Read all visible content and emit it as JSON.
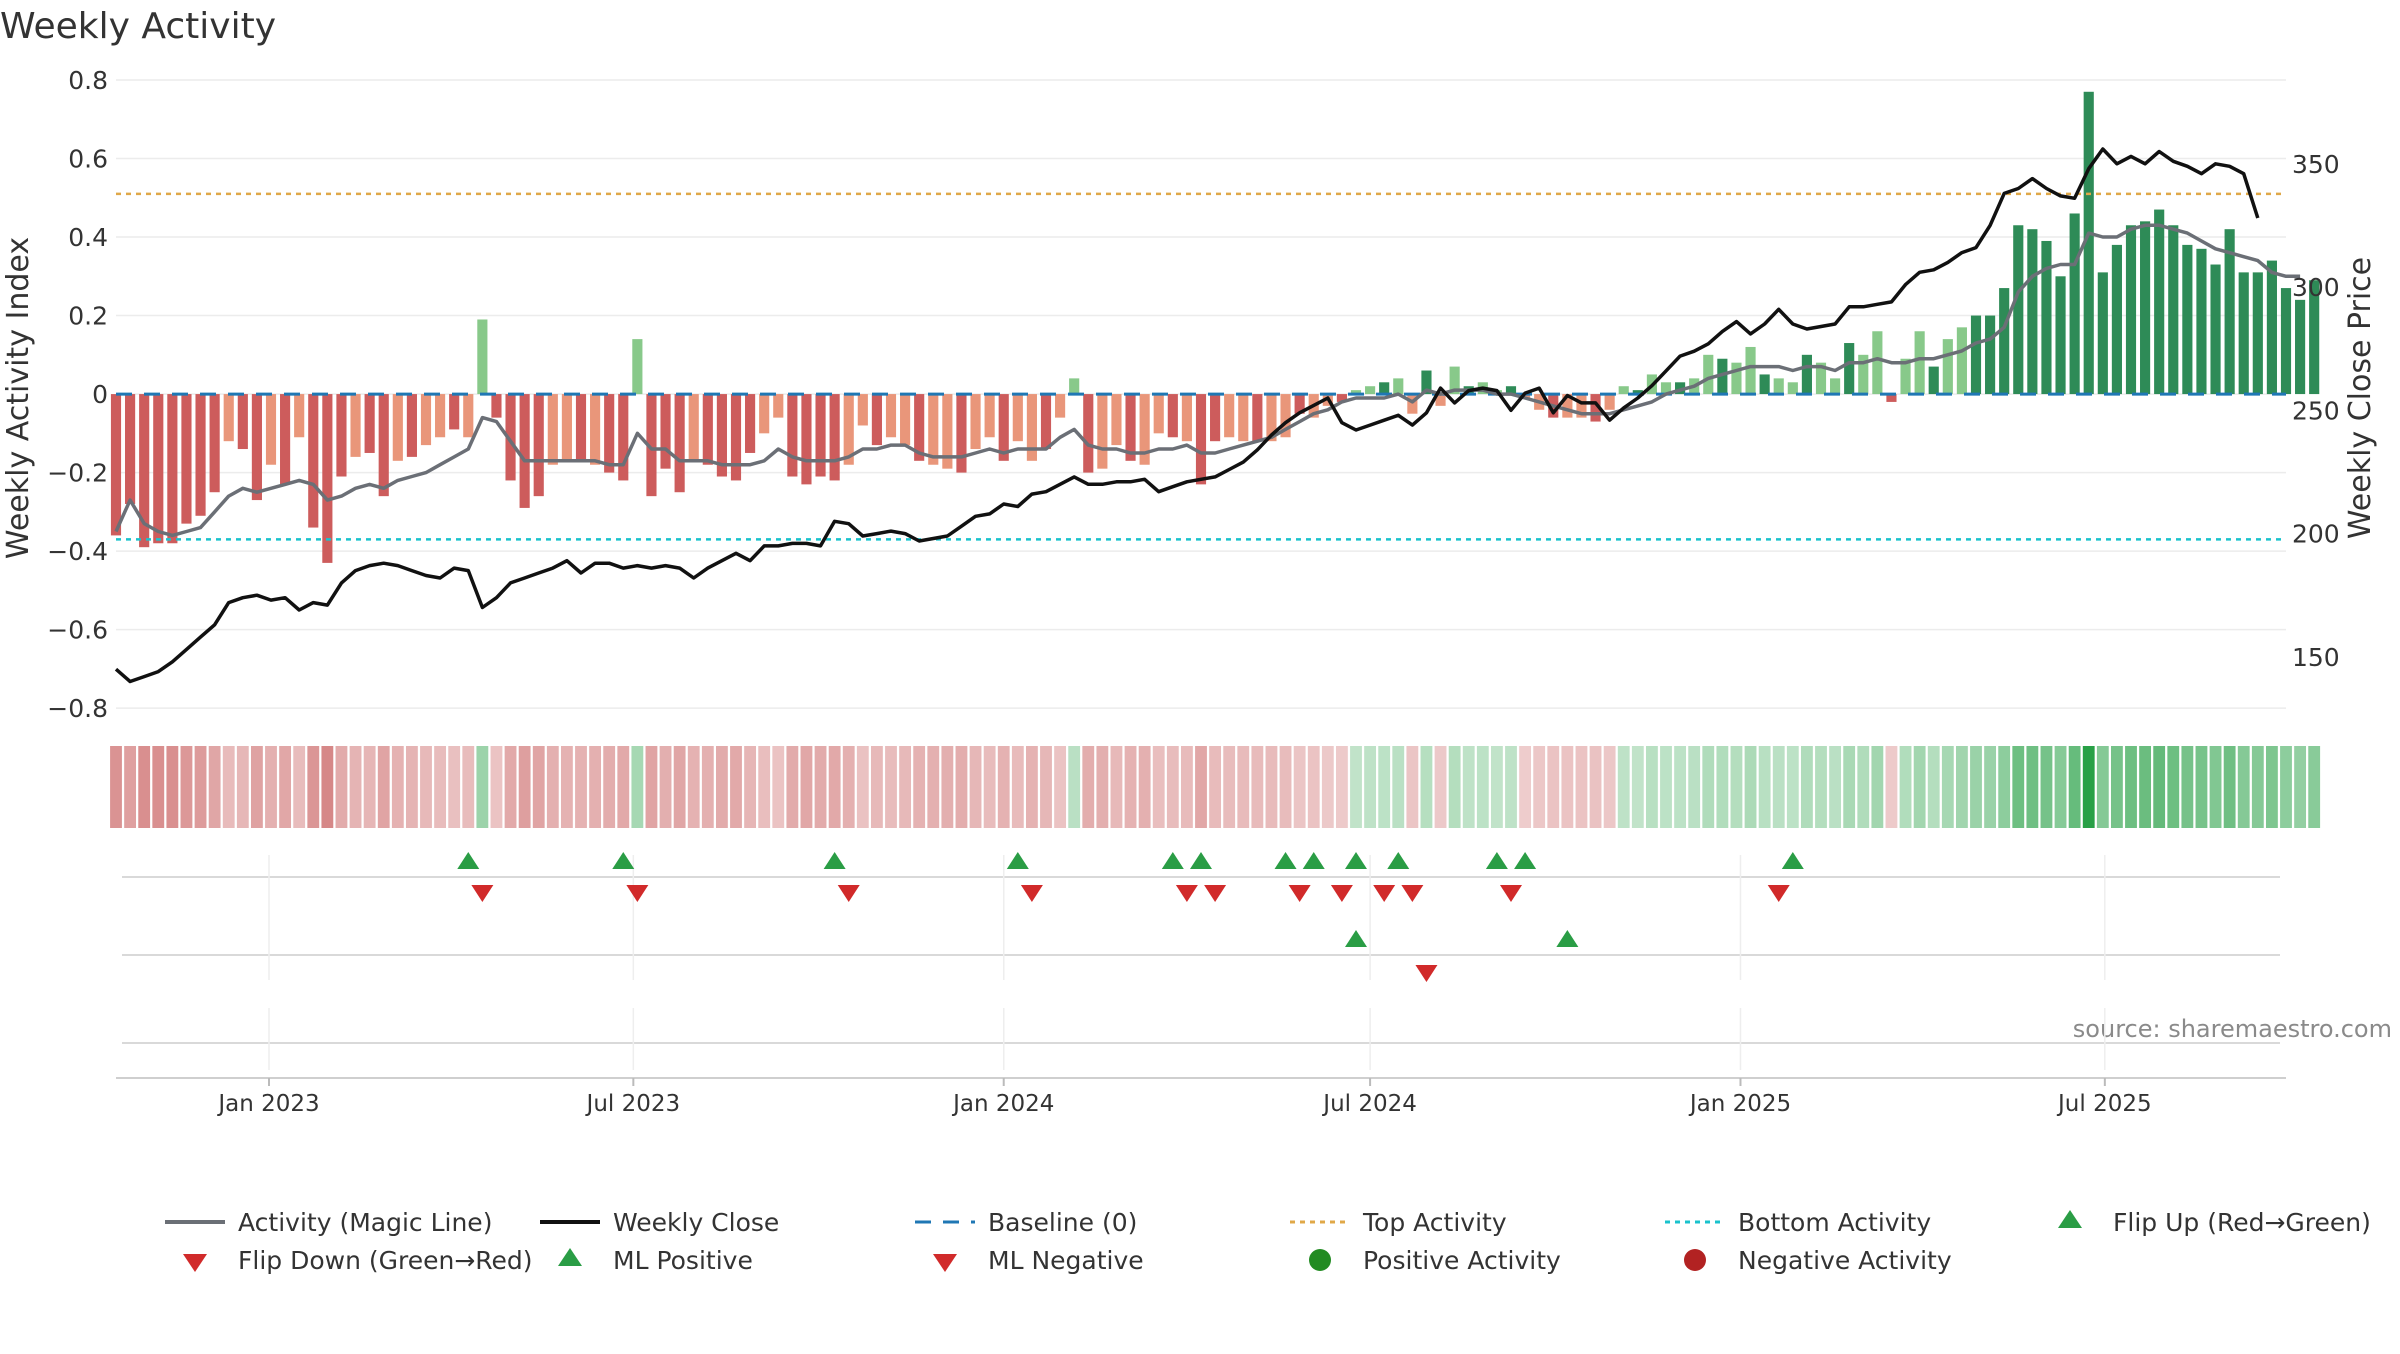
{
  "chart_data": {
    "type": "bar",
    "title": "Weekly Activity",
    "ylabel_left": "Weekly Activity Index",
    "ylabel_right": "Weekly Close Price",
    "ylim_left": [
      -0.82,
      0.8
    ],
    "ylim_right": [
      126,
      384
    ],
    "yticks_left": [
      {
        "v": 0.8,
        "label": "0.8"
      },
      {
        "v": 0.6,
        "label": "0.6"
      },
      {
        "v": 0.4,
        "label": "0.4"
      },
      {
        "v": 0.2,
        "label": "0.2"
      },
      {
        "v": 0,
        "label": "0"
      },
      {
        "v": -0.2,
        "label": "−0.2"
      },
      {
        "v": -0.4,
        "label": "−0.4"
      },
      {
        "v": -0.6,
        "label": "−0.6"
      },
      {
        "v": -0.8,
        "label": "−0.8"
      }
    ],
    "yticks_right": [
      {
        "v": 350,
        "label": "350"
      },
      {
        "v": 300,
        "label": "300"
      },
      {
        "v": 250,
        "label": "250"
      },
      {
        "v": 200,
        "label": "200"
      },
      {
        "v": 150,
        "label": "150"
      }
    ],
    "x_start": "2022-10-17",
    "x_end": "2025-09-29",
    "xticks": [
      {
        "date": "2023-01-01",
        "label": "Jan 2023"
      },
      {
        "date": "2023-07-01",
        "label": "Jul 2023"
      },
      {
        "date": "2024-01-01",
        "label": "Jan 2024"
      },
      {
        "date": "2024-07-01",
        "label": "Jul 2024"
      },
      {
        "date": "2025-01-01",
        "label": "Jan 2025"
      },
      {
        "date": "2025-07-01",
        "label": "Jul 2025"
      }
    ],
    "start_date": "2022-10-17",
    "week_count": 153,
    "activity": [
      -0.36,
      -0.28,
      -0.39,
      -0.38,
      -0.38,
      -0.33,
      -0.31,
      -0.25,
      -0.12,
      -0.14,
      -0.27,
      -0.18,
      -0.23,
      -0.11,
      -0.34,
      -0.43,
      -0.21,
      -0.16,
      -0.15,
      -0.26,
      -0.17,
      -0.16,
      -0.13,
      -0.11,
      -0.09,
      -0.11,
      0.19,
      -0.06,
      -0.22,
      -0.29,
      -0.26,
      -0.18,
      -0.17,
      -0.17,
      -0.18,
      -0.2,
      -0.22,
      0.14,
      -0.26,
      -0.19,
      -0.25,
      -0.17,
      -0.18,
      -0.21,
      -0.22,
      -0.15,
      -0.1,
      -0.06,
      -0.21,
      -0.23,
      -0.21,
      -0.22,
      -0.18,
      -0.08,
      -0.13,
      -0.11,
      -0.13,
      -0.17,
      -0.18,
      -0.19,
      -0.2,
      -0.14,
      -0.11,
      -0.17,
      -0.12,
      -0.17,
      -0.14,
      -0.06,
      0.04,
      -0.2,
      -0.19,
      -0.13,
      -0.17,
      -0.18,
      -0.1,
      -0.11,
      -0.12,
      -0.23,
      -0.12,
      -0.11,
      -0.12,
      -0.12,
      -0.12,
      -0.11,
      -0.05,
      -0.06,
      -0.03,
      -0.02,
      0.01,
      0.02,
      0.03,
      0.04,
      -0.05,
      0.06,
      -0.03,
      0.07,
      0.02,
      0.03,
      0.01,
      0.02,
      -0.01,
      -0.04,
      -0.06,
      -0.06,
      -0.06,
      -0.07,
      -0.04,
      0.02,
      0.01,
      0.05,
      0.03,
      0.03,
      0.04,
      0.1,
      0.09,
      0.08,
      0.12,
      0.05,
      0.04,
      0.03,
      0.1,
      0.08,
      0.04,
      0.13,
      0.1,
      0.16,
      -0.02,
      0.09,
      0.16,
      0.07,
      0.14,
      0.17,
      0.2,
      0.2,
      0.27,
      0.43,
      0.42,
      0.39,
      0.3,
      0.46,
      0.77,
      0.31,
      0.38,
      0.43,
      0.44,
      0.47,
      0.43,
      0.38,
      0.37,
      0.33,
      0.42,
      0.31,
      0.31,
      0.34,
      0.27,
      0.24,
      0.29
    ],
    "magic_line": [
      -0.35,
      -0.27,
      -0.33,
      -0.35,
      -0.36,
      -0.35,
      -0.34,
      -0.3,
      -0.26,
      -0.24,
      -0.25,
      -0.24,
      -0.23,
      -0.22,
      -0.23,
      -0.27,
      -0.26,
      -0.24,
      -0.23,
      -0.24,
      -0.22,
      -0.21,
      -0.2,
      -0.18,
      -0.16,
      -0.14,
      -0.06,
      -0.07,
      -0.12,
      -0.17,
      -0.17,
      -0.17,
      -0.17,
      -0.17,
      -0.17,
      -0.18,
      -0.18,
      -0.1,
      -0.14,
      -0.14,
      -0.17,
      -0.17,
      -0.17,
      -0.18,
      -0.18,
      -0.18,
      -0.17,
      -0.14,
      -0.16,
      -0.17,
      -0.17,
      -0.17,
      -0.16,
      -0.14,
      -0.14,
      -0.13,
      -0.13,
      -0.15,
      -0.16,
      -0.16,
      -0.16,
      -0.15,
      -0.14,
      -0.15,
      -0.14,
      -0.14,
      -0.14,
      -0.11,
      -0.09,
      -0.13,
      -0.14,
      -0.14,
      -0.15,
      -0.15,
      -0.14,
      -0.14,
      -0.13,
      -0.15,
      -0.15,
      -0.14,
      -0.13,
      -0.12,
      -0.11,
      -0.09,
      -0.07,
      -0.05,
      -0.04,
      -0.02,
      -0.01,
      -0.01,
      -0.01,
      0.0,
      -0.02,
      0.01,
      0.0,
      0.01,
      0.01,
      0.01,
      0.0,
      0.0,
      -0.01,
      -0.02,
      -0.03,
      -0.04,
      -0.05,
      -0.05,
      -0.05,
      -0.04,
      -0.03,
      -0.02,
      0.0,
      0.01,
      0.02,
      0.04,
      0.05,
      0.06,
      0.07,
      0.07,
      0.07,
      0.06,
      0.07,
      0.07,
      0.06,
      0.08,
      0.08,
      0.09,
      0.08,
      0.08,
      0.09,
      0.09,
      0.1,
      0.11,
      0.13,
      0.14,
      0.17,
      0.26,
      0.3,
      0.32,
      0.33,
      0.33,
      0.41,
      0.4,
      0.4,
      0.42,
      0.43,
      0.43,
      0.42,
      0.41,
      0.39,
      0.37,
      0.36,
      0.35,
      0.34,
      0.31,
      0.3,
      0.3
    ],
    "close": [
      145,
      140,
      142,
      144,
      148,
      153,
      158,
      163,
      172,
      174,
      175,
      173,
      174,
      169,
      172,
      171,
      180,
      185,
      187,
      188,
      187,
      185,
      183,
      182,
      186,
      185,
      170,
      174,
      180,
      182,
      184,
      186,
      189,
      184,
      188,
      188,
      186,
      187,
      186,
      187,
      186,
      182,
      186,
      189,
      192,
      189,
      195,
      195,
      196,
      196,
      195,
      205,
      204,
      199,
      200,
      201,
      200,
      197,
      198,
      199,
      203,
      207,
      208,
      212,
      211,
      216,
      217,
      220,
      223,
      220,
      220,
      221,
      221,
      222,
      217,
      219,
      221,
      222,
      223,
      226,
      229,
      234,
      240,
      245,
      249,
      252,
      255,
      245,
      242,
      244,
      246,
      248,
      244,
      249,
      259,
      253,
      258,
      259,
      258,
      250,
      257,
      259,
      249,
      256,
      253,
      253,
      246,
      251,
      255,
      260,
      266,
      272,
      274,
      277,
      282,
      286,
      281,
      285,
      291,
      285,
      283,
      284,
      285,
      292,
      292,
      293,
      294,
      301,
      306,
      307,
      310,
      314,
      316,
      325,
      338,
      340,
      344,
      340,
      337,
      336,
      348,
      356,
      350,
      353,
      350,
      355,
      351,
      349,
      346,
      350,
      349,
      346,
      328
    ],
    "top_activity": 0.51,
    "bottom_activity": -0.37,
    "flips_up": [
      25,
      36,
      51,
      64,
      75,
      77,
      83,
      85,
      88,
      91,
      98,
      100,
      119
    ],
    "flips_down": [
      26,
      37,
      52,
      65,
      76,
      78,
      84,
      87,
      90,
      92,
      99,
      118
    ],
    "ml_positive": [
      88,
      103
    ],
    "ml_negative": [
      93
    ],
    "source": "source: sharemaestro.com",
    "colors": {
      "strong_green": "#2e8b57",
      "light_green": "#88c98a",
      "strong_red": "#cd5c5c",
      "light_red": "#e9967a",
      "magic_line": "#6b6f76",
      "close": "#111111",
      "baseline": "#1f77b4",
      "top": "#e0a848",
      "bottom": "#19c2cc",
      "marker_green": "#2a9d45",
      "marker_red": "#d12a2a",
      "dot_green": "#228b22",
      "dot_red": "#b22222"
    },
    "legend": [
      {
        "key": "magic",
        "label": "Activity (Magic Line)"
      },
      {
        "key": "close",
        "label": "Weekly Close"
      },
      {
        "key": "baseline",
        "label": "Baseline (0)"
      },
      {
        "key": "top",
        "label": "Top Activity"
      },
      {
        "key": "bottom",
        "label": "Bottom Activity"
      },
      {
        "key": "flipup",
        "label": "Flip Up (Red→Green)"
      },
      {
        "key": "flipdown",
        "label": "Flip Down (Green→Red)"
      },
      {
        "key": "mlpos",
        "label": "ML Positive"
      },
      {
        "key": "mlneg",
        "label": "ML Negative"
      },
      {
        "key": "posdot",
        "label": "Positive Activity"
      },
      {
        "key": "negdot",
        "label": "Negative Activity"
      }
    ]
  }
}
